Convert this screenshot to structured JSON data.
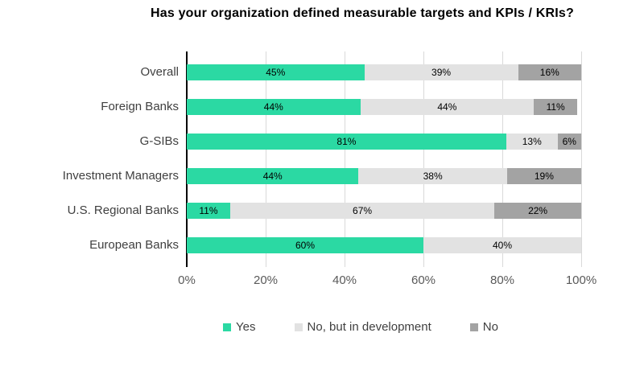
{
  "title": "Has your organization defined measurable targets and KPIs / KRIs?",
  "colors": {
    "series": [
      "#2bd9a3",
      "#e2e2e2",
      "#a3a3a3"
    ],
    "gridline": "#d9d9d9",
    "axis_line": "#000000",
    "category_label": "#3f3f3f",
    "tick_label": "#595959",
    "value_label": "#000000",
    "legend_label": "#404040",
    "background": "#ffffff"
  },
  "chart_data": {
    "type": "bar",
    "orientation": "horizontal",
    "stacked": true,
    "title": "Has your organization defined measurable targets and KPIs / KRIs?",
    "categories": [
      "Overall",
      "Foreign Banks",
      "G-SIBs",
      "Investment Managers",
      "U.S. Regional Banks",
      "European Banks"
    ],
    "series": [
      {
        "name": "Yes",
        "values": [
          45,
          44,
          81,
          44,
          11,
          60
        ]
      },
      {
        "name": "No, but in development",
        "values": [
          39,
          44,
          13,
          38,
          67,
          40
        ]
      },
      {
        "name": "No",
        "values": [
          16,
          11,
          6,
          19,
          22,
          null
        ]
      }
    ],
    "x_ticks": [
      "0%",
      "20%",
      "40%",
      "60%",
      "80%",
      "100%"
    ],
    "xlim": [
      0,
      100
    ],
    "value_suffix": "%",
    "grid": true,
    "legend_position": "bottom"
  }
}
